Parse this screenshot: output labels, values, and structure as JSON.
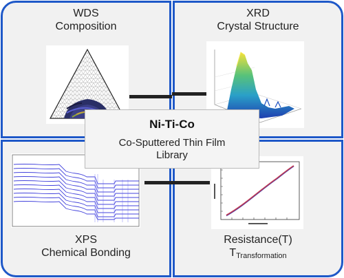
{
  "center": {
    "title": "Ni-Ti-Co",
    "subtitle_line1": "Co-Sputtered Thin Film",
    "subtitle_line2": "Library"
  },
  "quadrants": {
    "top_left": {
      "line1": "WDS",
      "line2": "Composition"
    },
    "top_right": {
      "line1": "XRD",
      "line2": "Crystal Structure"
    },
    "bottom_left": {
      "line1": "XPS",
      "line2": "Chemical Bonding"
    },
    "bottom_right": {
      "line1": "Resistance(T)",
      "line2_main": "T",
      "line2_sub": "Transformation"
    }
  },
  "colors": {
    "border_blue": "#1e58c8",
    "panel_gray": "#f1f1f1",
    "connector": "#222222"
  },
  "icons": [
    "ternary-diagram",
    "xrd-3d-surface-plot",
    "xps-spectra-plot",
    "resistance-temperature-plot"
  ]
}
